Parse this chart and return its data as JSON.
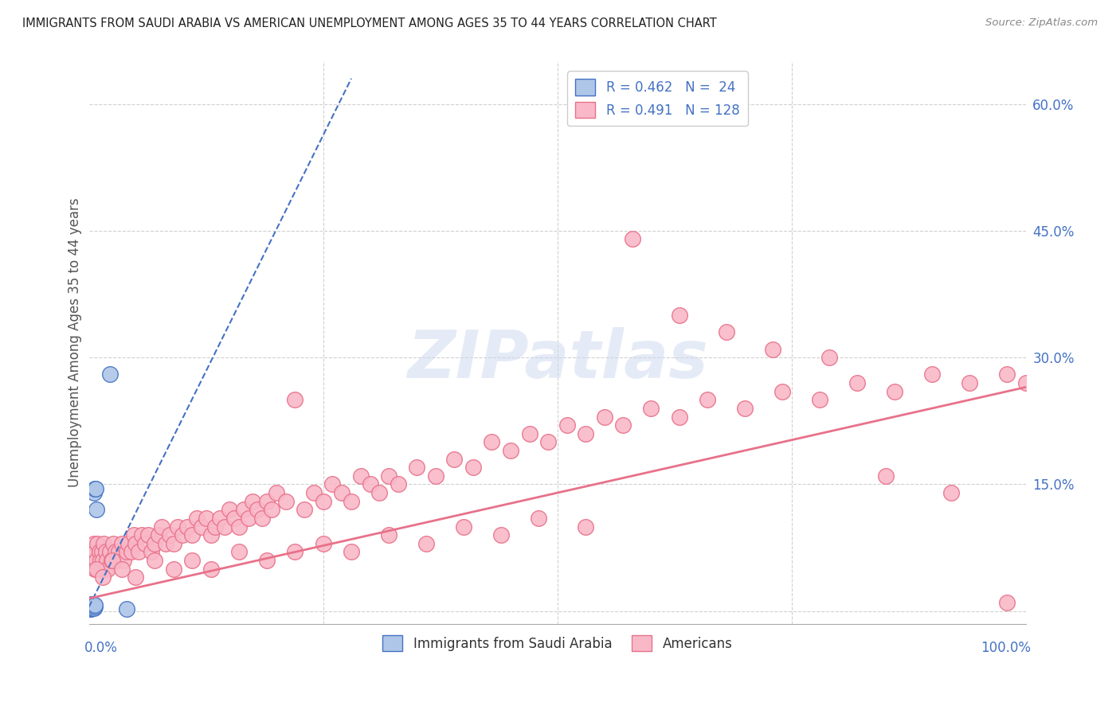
{
  "title": "IMMIGRANTS FROM SAUDI ARABIA VS AMERICAN UNEMPLOYMENT AMONG AGES 35 TO 44 YEARS CORRELATION CHART",
  "source": "Source: ZipAtlas.com",
  "ylabel": "Unemployment Among Ages 35 to 44 years",
  "y_ticks": [
    0.0,
    0.15,
    0.3,
    0.45,
    0.6
  ],
  "y_tick_labels": [
    "",
    "15.0%",
    "30.0%",
    "45.0%",
    "60.0%"
  ],
  "xlim": [
    0.0,
    1.0
  ],
  "ylim": [
    -0.015,
    0.65
  ],
  "color_blue_fill": "#aec6e8",
  "color_pink_fill": "#f9b8c8",
  "color_blue_edge": "#4472c4",
  "color_pink_edge": "#e8718a",
  "color_blue_text": "#4472c4",
  "legend_label1": "Immigrants from Saudi Arabia",
  "legend_label2": "Americans",
  "legend_line1": "R = 0.462   N =  24",
  "legend_line2": "R = 0.491   N = 128",
  "saudi_trendline_x0": 0.0,
  "saudi_trendline_y0": 0.005,
  "saudi_trendline_x1": 0.28,
  "saudi_trendline_y1": 0.63,
  "american_trendline_x0": 0.0,
  "american_trendline_y0": 0.015,
  "american_trendline_x1": 1.0,
  "american_trendline_y1": 0.265,
  "saudi_x": [
    0.001,
    0.001,
    0.001,
    0.001,
    0.002,
    0.002,
    0.002,
    0.003,
    0.003,
    0.003,
    0.003,
    0.004,
    0.004,
    0.004,
    0.005,
    0.005,
    0.005,
    0.006,
    0.006,
    0.006,
    0.007,
    0.008,
    0.022,
    0.04
  ],
  "saudi_y": [
    0.003,
    0.004,
    0.005,
    0.006,
    0.003,
    0.005,
    0.007,
    0.004,
    0.005,
    0.006,
    0.008,
    0.005,
    0.006,
    0.008,
    0.004,
    0.006,
    0.14,
    0.005,
    0.007,
    0.145,
    0.145,
    0.12,
    0.28,
    0.003
  ],
  "am_x": [
    0.003,
    0.005,
    0.006,
    0.007,
    0.008,
    0.009,
    0.01,
    0.011,
    0.012,
    0.013,
    0.014,
    0.015,
    0.016,
    0.017,
    0.018,
    0.019,
    0.02,
    0.022,
    0.024,
    0.026,
    0.028,
    0.03,
    0.032,
    0.035,
    0.037,
    0.04,
    0.042,
    0.045,
    0.048,
    0.05,
    0.053,
    0.056,
    0.06,
    0.063,
    0.067,
    0.07,
    0.074,
    0.078,
    0.082,
    0.086,
    0.09,
    0.095,
    0.1,
    0.105,
    0.11,
    0.115,
    0.12,
    0.125,
    0.13,
    0.135,
    0.14,
    0.145,
    0.15,
    0.155,
    0.16,
    0.165,
    0.17,
    0.175,
    0.18,
    0.185,
    0.19,
    0.195,
    0.2,
    0.21,
    0.22,
    0.23,
    0.24,
    0.25,
    0.26,
    0.27,
    0.28,
    0.29,
    0.3,
    0.31,
    0.32,
    0.33,
    0.35,
    0.37,
    0.39,
    0.41,
    0.43,
    0.45,
    0.47,
    0.49,
    0.51,
    0.53,
    0.55,
    0.57,
    0.6,
    0.63,
    0.66,
    0.7,
    0.74,
    0.78,
    0.82,
    0.86,
    0.9,
    0.94,
    0.98,
    1.0,
    0.008,
    0.015,
    0.025,
    0.035,
    0.05,
    0.07,
    0.09,
    0.11,
    0.13,
    0.16,
    0.19,
    0.22,
    0.25,
    0.28,
    0.32,
    0.36,
    0.4,
    0.44,
    0.48,
    0.53,
    0.58,
    0.63,
    0.68,
    0.73,
    0.79,
    0.85,
    0.92,
    0.98
  ],
  "am_y": [
    0.06,
    0.08,
    0.05,
    0.07,
    0.06,
    0.08,
    0.05,
    0.07,
    0.06,
    0.05,
    0.07,
    0.06,
    0.08,
    0.05,
    0.07,
    0.06,
    0.05,
    0.07,
    0.06,
    0.08,
    0.07,
    0.06,
    0.07,
    0.08,
    0.06,
    0.07,
    0.08,
    0.07,
    0.09,
    0.08,
    0.07,
    0.09,
    0.08,
    0.09,
    0.07,
    0.08,
    0.09,
    0.1,
    0.08,
    0.09,
    0.08,
    0.1,
    0.09,
    0.1,
    0.09,
    0.11,
    0.1,
    0.11,
    0.09,
    0.1,
    0.11,
    0.1,
    0.12,
    0.11,
    0.1,
    0.12,
    0.11,
    0.13,
    0.12,
    0.11,
    0.13,
    0.12,
    0.14,
    0.13,
    0.25,
    0.12,
    0.14,
    0.13,
    0.15,
    0.14,
    0.13,
    0.16,
    0.15,
    0.14,
    0.16,
    0.15,
    0.17,
    0.16,
    0.18,
    0.17,
    0.2,
    0.19,
    0.21,
    0.2,
    0.22,
    0.21,
    0.23,
    0.22,
    0.24,
    0.23,
    0.25,
    0.24,
    0.26,
    0.25,
    0.27,
    0.26,
    0.28,
    0.27,
    0.28,
    0.27,
    0.05,
    0.04,
    0.06,
    0.05,
    0.04,
    0.06,
    0.05,
    0.06,
    0.05,
    0.07,
    0.06,
    0.07,
    0.08,
    0.07,
    0.09,
    0.08,
    0.1,
    0.09,
    0.11,
    0.1,
    0.44,
    0.35,
    0.33,
    0.31,
    0.3,
    0.16,
    0.14,
    0.01
  ]
}
